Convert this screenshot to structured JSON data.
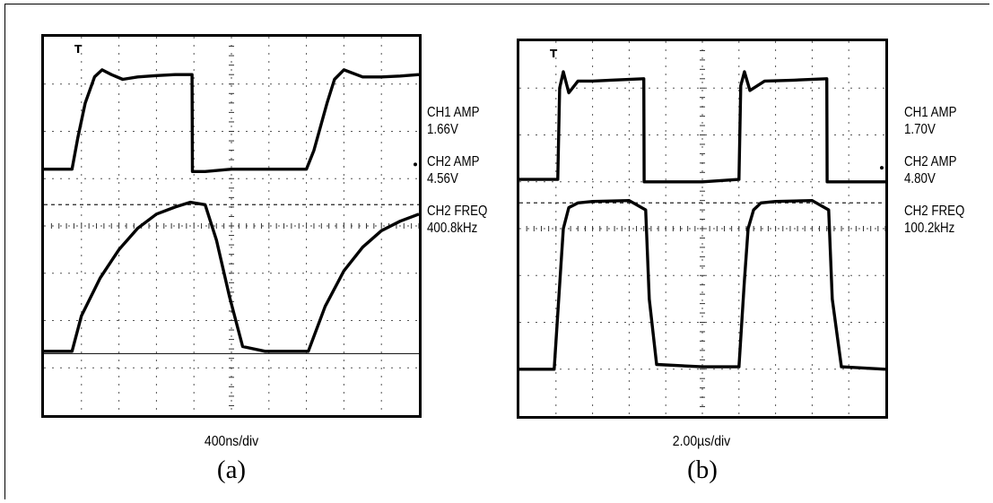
{
  "chart_data": [
    {
      "type": "line",
      "panel_label": "(a)",
      "timebase": "400ns/div",
      "trigger_marker": "T",
      "grid": "10x8 dotted divisions",
      "readouts": {
        "ch1_amp_label": "CH1 AMP",
        "ch1_amp": "1.66V",
        "ch2_amp_label": "CH2 AMP",
        "ch2_amp": "4.56V",
        "ch2_freq_label": "CH2 FREQ",
        "ch2_freq": "400.8kHz"
      },
      "x_units": "div",
      "xlim": [
        0,
        10
      ],
      "ylim": [
        0,
        8
      ],
      "series": [
        {
          "name": "CH1",
          "x": [
            0,
            0.75,
            0.9,
            1.1,
            1.35,
            1.55,
            1.8,
            2.1,
            2.5,
            3.0,
            3.5,
            3.95,
            3.96,
            4.3,
            5.0,
            6.0,
            7.0,
            7.2,
            7.55,
            7.75,
            8.0,
            8.5,
            9.0,
            9.5,
            10
          ],
          "y": [
            5.2,
            5.2,
            5.85,
            6.6,
            7.15,
            7.3,
            7.2,
            7.1,
            7.15,
            7.18,
            7.2,
            7.2,
            5.15,
            5.15,
            5.2,
            5.2,
            5.2,
            5.6,
            6.6,
            7.1,
            7.3,
            7.15,
            7.15,
            7.17,
            7.2
          ]
        },
        {
          "name": "CH2",
          "x": [
            0,
            0.75,
            1.0,
            1.5,
            2.0,
            2.5,
            3.0,
            3.5,
            3.9,
            4.3,
            4.6,
            4.95,
            5.3,
            5.9,
            6.6,
            7.05,
            7.5,
            8.0,
            8.5,
            9.0,
            9.5,
            10
          ],
          "y": [
            1.35,
            1.35,
            2.1,
            2.9,
            3.5,
            3.95,
            4.25,
            4.4,
            4.5,
            4.45,
            3.7,
            2.5,
            1.45,
            1.35,
            1.35,
            1.35,
            2.3,
            3.05,
            3.55,
            3.9,
            4.1,
            4.25
          ]
        }
      ]
    },
    {
      "type": "line",
      "panel_label": "(b)",
      "timebase": "2.00µs/div",
      "trigger_marker": "T",
      "grid": "10x8 dotted divisions",
      "readouts": {
        "ch1_amp_label": "CH1 AMP",
        "ch1_amp": "1.70V",
        "ch2_amp_label": "CH2 AMP",
        "ch2_amp": "4.80V",
        "ch2_freq_label": "CH2 FREQ",
        "ch2_freq": "100.2kHz"
      },
      "x_units": "div",
      "xlim": [
        0,
        10
      ],
      "ylim": [
        0,
        8
      ],
      "series": [
        {
          "name": "CH1",
          "x": [
            0,
            1.05,
            1.1,
            1.2,
            1.35,
            1.6,
            2.0,
            2.5,
            3.4,
            3.41,
            4.0,
            5.0,
            6.0,
            6.05,
            6.15,
            6.3,
            6.7,
            7.5,
            8.4,
            8.41,
            9.0,
            10
          ],
          "y": [
            5.05,
            5.05,
            7.0,
            7.35,
            6.9,
            7.15,
            7.15,
            7.17,
            7.2,
            5.0,
            5.0,
            5.0,
            5.05,
            7.05,
            7.35,
            6.95,
            7.15,
            7.17,
            7.2,
            5.0,
            5.0,
            5.0
          ]
        },
        {
          "name": "CH2",
          "x": [
            0,
            0.95,
            1.1,
            1.2,
            1.35,
            1.6,
            2.0,
            3.0,
            3.45,
            3.55,
            3.75,
            5.0,
            6.0,
            6.15,
            6.25,
            6.4,
            6.6,
            7.0,
            8.0,
            8.45,
            8.55,
            8.8,
            10
          ],
          "y": [
            1.0,
            1.0,
            2.8,
            4.0,
            4.45,
            4.55,
            4.58,
            4.6,
            4.4,
            2.5,
            1.1,
            1.05,
            1.05,
            2.9,
            4.0,
            4.4,
            4.55,
            4.58,
            4.6,
            4.4,
            2.5,
            1.05,
            1.0
          ]
        }
      ]
    }
  ]
}
